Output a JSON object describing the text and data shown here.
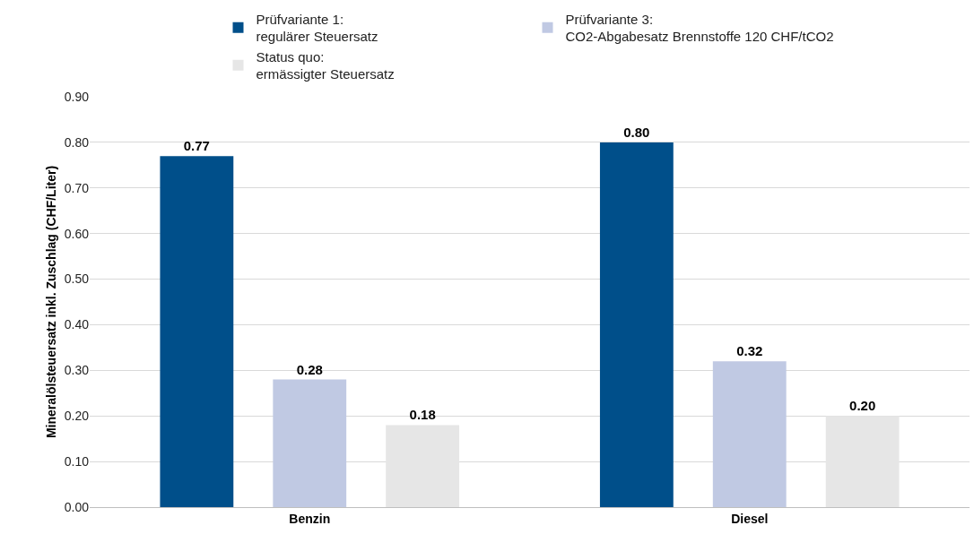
{
  "chart_data": {
    "type": "bar",
    "ylabel": "Mineralölsteuersatz inkl. Zuschlag (CHF/Liter)",
    "categories": [
      "Benzin",
      "Diesel"
    ],
    "series": [
      {
        "name": "Prüfvariante 1:\nregulärer Steuersatz",
        "color": "#004f8a",
        "values": [
          0.77,
          0.8
        ],
        "value_labels": [
          "0.77",
          "0.80"
        ]
      },
      {
        "name": "Prüfvariante 3:\nCO2-Abgabesatz Brennstoffe 120 CHF/tCO2",
        "color": "#c0c9e3",
        "values": [
          0.28,
          0.32
        ],
        "value_labels": [
          "0.28",
          "0.32"
        ]
      },
      {
        "name": "Status quo:\nermässigter Steuersatz",
        "color": "#e6e6e6",
        "values": [
          0.18,
          0.2
        ],
        "value_labels": [
          "0.18",
          "0.20"
        ]
      }
    ],
    "ylim": [
      0,
      0.9
    ],
    "yticks": [
      {
        "value": 0,
        "label": "0.00"
      },
      {
        "value": 0.1,
        "label": "0.10"
      },
      {
        "value": 0.2,
        "label": "0.20"
      },
      {
        "value": 0.3,
        "label": "0.30"
      },
      {
        "value": 0.4,
        "label": "0.40"
      },
      {
        "value": 0.5,
        "label": "0.50"
      },
      {
        "value": 0.6,
        "label": "0.60"
      },
      {
        "value": 0.7,
        "label": "0.70"
      },
      {
        "value": 0.8,
        "label": "0.80"
      },
      {
        "value": 0.9,
        "label": "0.90"
      }
    ],
    "grid": "y",
    "legend": "top"
  }
}
